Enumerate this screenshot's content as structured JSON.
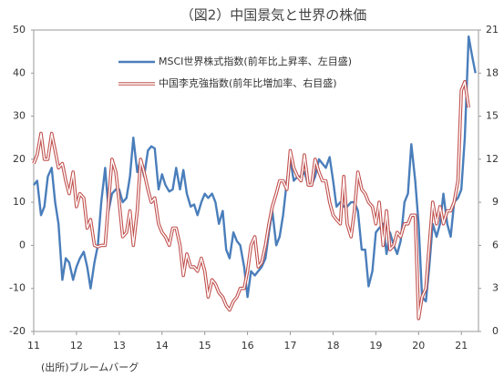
{
  "chart_data": {
    "type": "line",
    "title": "（図2）中国景気と世界の株価",
    "source": "(出所)ブルームバーグ",
    "x": [
      11,
      11.08,
      11.17,
      11.25,
      11.33,
      11.42,
      11.5,
      11.58,
      11.67,
      11.75,
      11.83,
      11.92,
      12,
      12.08,
      12.17,
      12.25,
      12.33,
      12.42,
      12.5,
      12.58,
      12.67,
      12.75,
      12.83,
      12.92,
      13,
      13.08,
      13.17,
      13.25,
      13.33,
      13.42,
      13.5,
      13.58,
      13.67,
      13.75,
      13.83,
      13.92,
      14,
      14.08,
      14.17,
      14.25,
      14.33,
      14.42,
      14.5,
      14.58,
      14.67,
      14.75,
      14.83,
      14.92,
      15,
      15.08,
      15.17,
      15.25,
      15.33,
      15.42,
      15.5,
      15.58,
      15.67,
      15.75,
      15.83,
      15.92,
      16,
      16.08,
      16.17,
      16.25,
      16.33,
      16.42,
      16.5,
      16.58,
      16.67,
      16.75,
      16.83,
      16.92,
      17,
      17.08,
      17.17,
      17.25,
      17.33,
      17.42,
      17.5,
      17.58,
      17.67,
      17.75,
      17.83,
      17.92,
      18,
      18.08,
      18.17,
      18.25,
      18.33,
      18.42,
      18.5,
      18.58,
      18.67,
      18.75,
      18.83,
      18.92,
      19,
      19.08,
      19.17,
      19.25,
      19.33,
      19.42,
      19.5,
      19.58,
      19.67,
      19.75,
      19.83,
      19.92,
      20,
      20.08,
      20.17,
      20.25,
      20.33,
      20.42,
      20.5,
      20.58,
      20.67,
      20.75,
      20.83,
      20.92,
      21,
      21.08,
      21.17,
      21.25,
      21.33
    ],
    "xlim": [
      11,
      21.4
    ],
    "xticks": [
      11,
      12,
      13,
      14,
      15,
      16,
      17,
      18,
      19,
      20,
      21
    ],
    "ylim": [
      -20,
      50
    ],
    "yticks": [
      50,
      40,
      30,
      20,
      10,
      0,
      -10,
      -20
    ],
    "y2lim": [
      0,
      21
    ],
    "y2ticks": [
      21,
      18,
      15,
      12,
      9,
      6,
      3,
      0
    ],
    "series": [
      {
        "name": "MSCI世界株式指数(前年比上昇率、左目盛)",
        "color": "#4a7ebb",
        "values": [
          14,
          15,
          7,
          9,
          16,
          18,
          10,
          5,
          -8,
          -3,
          -4,
          -8,
          -5,
          -3,
          -1.5,
          -5,
          -10,
          -4,
          0,
          10,
          18,
          8,
          12,
          13,
          13,
          10,
          11,
          16,
          25,
          17,
          20,
          16,
          22,
          23,
          22.5,
          13,
          16.5,
          14,
          12.5,
          13,
          18,
          13,
          17.5,
          12,
          9,
          9.5,
          7,
          10,
          12,
          11,
          12,
          10,
          5,
          8,
          -1,
          -3,
          3,
          1,
          0,
          -5,
          -12,
          -6,
          -7,
          -6,
          -5,
          -3,
          3,
          8,
          0,
          2,
          7,
          15,
          20,
          15,
          16,
          16,
          17,
          14,
          14,
          16,
          20,
          19,
          18,
          20.5,
          15,
          9,
          10,
          9,
          9,
          10,
          10,
          8,
          -1,
          -1,
          -9.5,
          -6,
          3,
          4,
          5,
          -2,
          3,
          0,
          -2,
          1,
          10,
          12,
          23.5,
          15,
          5,
          -12,
          -13,
          -5,
          5,
          2,
          5,
          12,
          5,
          2,
          10,
          11,
          13,
          25,
          48.5,
          44,
          40
        ]
      },
      {
        "name": "中国李克強指数(前年比増加率、右目盛)",
        "color": "#c0504d",
        "axis": "y2",
        "values": [
          11.7,
          12.3,
          13.8,
          12,
          12,
          13.8,
          12.6,
          11.4,
          11.7,
          10.5,
          9.6,
          11.1,
          8.7,
          9.6,
          9.3,
          7.2,
          7.8,
          6,
          5.9,
          6,
          6,
          9,
          12,
          11.1,
          9,
          6.6,
          6.9,
          8.4,
          6,
          8.4,
          12,
          11.1,
          9.9,
          9,
          9.3,
          7.5,
          6.9,
          6.6,
          6,
          7.2,
          7.2,
          6,
          3.9,
          5.4,
          4.5,
          4.5,
          4.2,
          5.1,
          4.2,
          2.4,
          3.6,
          3.3,
          2.7,
          2.4,
          1.8,
          1.5,
          2.1,
          2.4,
          3,
          3,
          4.2,
          6,
          6.6,
          4.5,
          4.8,
          6,
          7.5,
          8.7,
          9.6,
          10.5,
          10.5,
          9.9,
          12.6,
          11.4,
          10.8,
          10.5,
          12.3,
          10.2,
          10.2,
          12,
          11.1,
          10.5,
          10.5,
          9,
          8.1,
          7.8,
          7.5,
          10.8,
          7.5,
          6.6,
          8.4,
          11.1,
          9.9,
          9.6,
          9,
          8.7,
          7.5,
          9,
          6,
          8.4,
          5.7,
          6,
          6.9,
          6.6,
          7.5,
          7.5,
          8.1,
          8.1,
          0.9,
          2.4,
          3,
          6,
          9,
          7.5,
          8.7,
          7.5,
          8.4,
          8.4,
          9,
          10.5,
          16.8,
          17.4,
          15.6,
          null,
          null
        ]
      }
    ]
  }
}
